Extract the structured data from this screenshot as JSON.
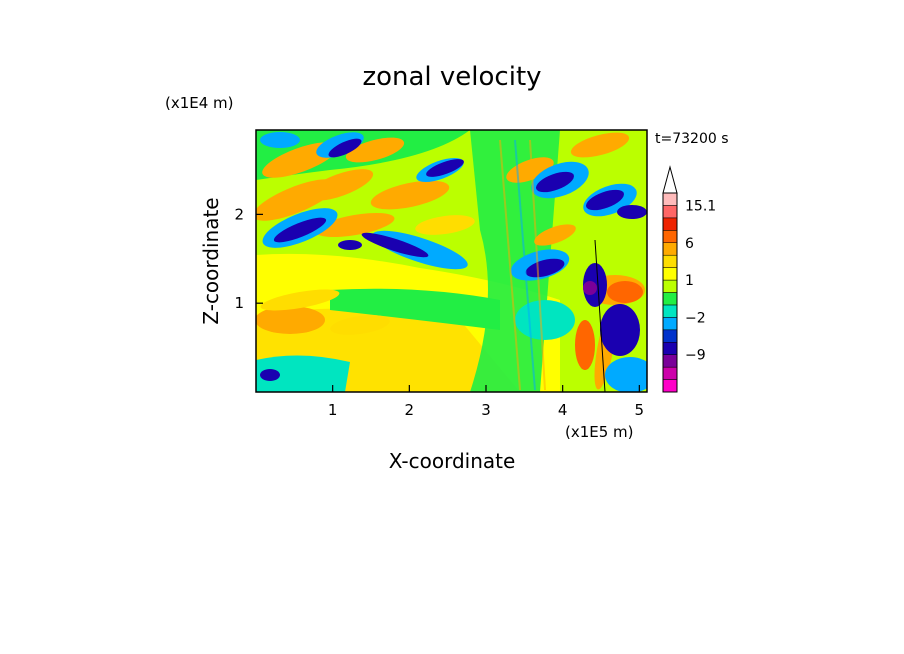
{
  "chart_data": {
    "type": "heatmap",
    "title": "zonal velocity",
    "time_label": "t=73200 s",
    "xlabel": "X-coordinate",
    "ylabel": "Z-coordinate",
    "x_unit": "(x1E5 m)",
    "y_unit": "(x1E4 m)",
    "xlim": [
      0,
      5.1
    ],
    "ylim": [
      0,
      2.95
    ],
    "x_ticks": [
      1,
      2,
      3,
      4,
      5
    ],
    "y_ticks": [
      1,
      2
    ],
    "colorbar": {
      "tick_labels": [
        {
          "value": 15.1,
          "label": "15.1"
        },
        {
          "value": 6,
          "label": "6"
        },
        {
          "value": 1,
          "label": "1"
        },
        {
          "value": -2,
          "label": "−2"
        },
        {
          "value": -9,
          "label": "−9"
        }
      ],
      "colors": [
        "#ff00c8",
        "#cc00aa",
        "#7a0099",
        "#1a00b0",
        "#0033cc",
        "#00aaff",
        "#00e5c0",
        "#22ee44",
        "#bbff00",
        "#ffff00",
        "#ffdd00",
        "#ffaa00",
        "#ff6600",
        "#ee2200",
        "#ff6666",
        "#ffbbbb",
        "#ffffff"
      ]
    }
  }
}
